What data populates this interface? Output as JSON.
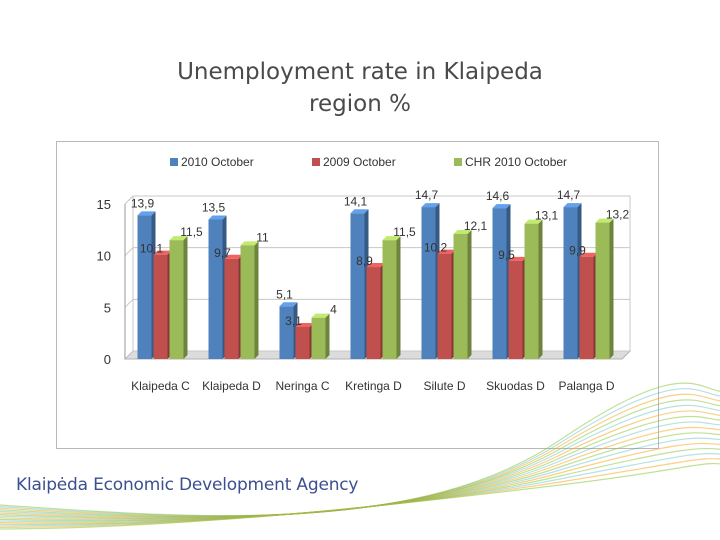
{
  "slide": {
    "title_line1": "Unemployment rate in Klaipeda",
    "title_line2": "region %"
  },
  "footer": {
    "agency": "Klaipėda Economic Development Agency"
  },
  "colors": {
    "series_blue": "#4f81bd",
    "series_red": "#c0504d",
    "series_green": "#9bbb59",
    "wave_green": "#8cc63f",
    "wave_teal": "#2ba9b4",
    "wave_orange": "#f7a823"
  },
  "chart_data": {
    "type": "bar",
    "title": "",
    "categories": [
      "Klaipeda C",
      "Klaipeda D",
      "Neringa C",
      "Kretinga D",
      "Silute D",
      "Skuodas D",
      "Palanga D"
    ],
    "series": [
      {
        "name": "2010 October",
        "values": [
          13.9,
          13.5,
          5.1,
          14.1,
          14.7,
          14.6,
          14.7
        ],
        "labels": [
          "13,9",
          "13,5",
          "5,1",
          "14,1",
          "14,7",
          "14,6",
          "14,7"
        ]
      },
      {
        "name": "2009 October",
        "values": [
          10.1,
          9.7,
          3.1,
          8.9,
          10.2,
          9.5,
          9.9
        ],
        "labels": [
          "10,1",
          "9,7",
          "3,1",
          "8,9",
          "10,2",
          "9,5",
          "9,9"
        ]
      },
      {
        "name": "CHR 2010 October",
        "values": [
          11.5,
          11,
          4,
          11.5,
          12.1,
          13.1,
          13.2
        ],
        "labels": [
          "11,5",
          "11",
          "4",
          "11,5",
          "12,1",
          "13,1",
          "13,2"
        ]
      }
    ],
    "yticks": [
      "0",
      "5",
      "10",
      "15"
    ],
    "ylim": [
      0,
      15
    ],
    "legend_position": "top",
    "grid": true
  }
}
